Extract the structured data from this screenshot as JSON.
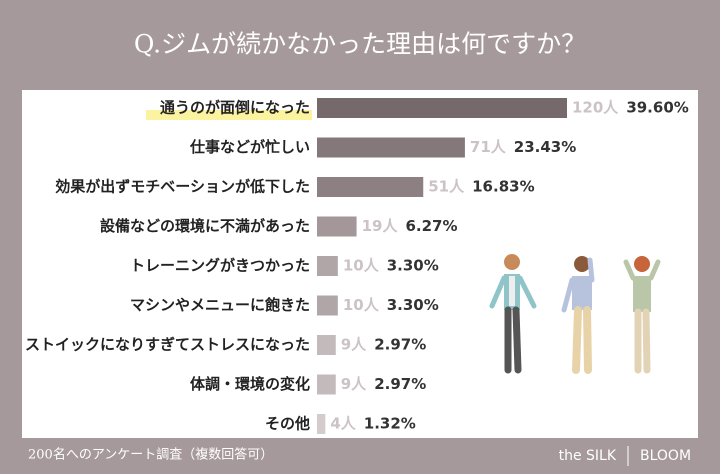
{
  "chart_data": {
    "type": "bar",
    "orientation": "horizontal",
    "title": "Q.ジムが続かなかった理由は何ですか？",
    "categories": [
      "通うのが面倒になった",
      "仕事などが忙しい",
      "効果が出ずモチベーションが低下した",
      "設備などの環境に不満があった",
      "トレーニングがきつかった",
      "マシンやメニューに飽きた",
      "ストイックになりすぎてストレスになった",
      "体調・環境の変化",
      "その他"
    ],
    "values": [
      120,
      71,
      51,
      19,
      10,
      10,
      9,
      9,
      4
    ],
    "value_labels": [
      "120人",
      "71人",
      "51人",
      "19人",
      "10人",
      "10人",
      "9人",
      "9人",
      "4人"
    ],
    "percent_values": [
      39.6,
      23.43,
      16.83,
      6.27,
      3.3,
      3.3,
      2.97,
      2.97,
      1.32
    ],
    "percent_labels": [
      "39.60%",
      "23.43%",
      "16.83%",
      "6.27%",
      "3.30%",
      "3.30%",
      "2.97%",
      "2.97%",
      "1.32%"
    ],
    "colors": [
      "#76696b",
      "#85787a",
      "#8d8082",
      "#a39799",
      "#b0a5a7",
      "#b0a5a7",
      "#c3babc",
      "#c3babc",
      "#d3cbcc"
    ],
    "highlight_color": "#fbf3a0"
  },
  "footer": {
    "note": "200名へのアンケート調査（複数回答可）",
    "brand": [
      "the SILK",
      "BLOOM"
    ]
  }
}
